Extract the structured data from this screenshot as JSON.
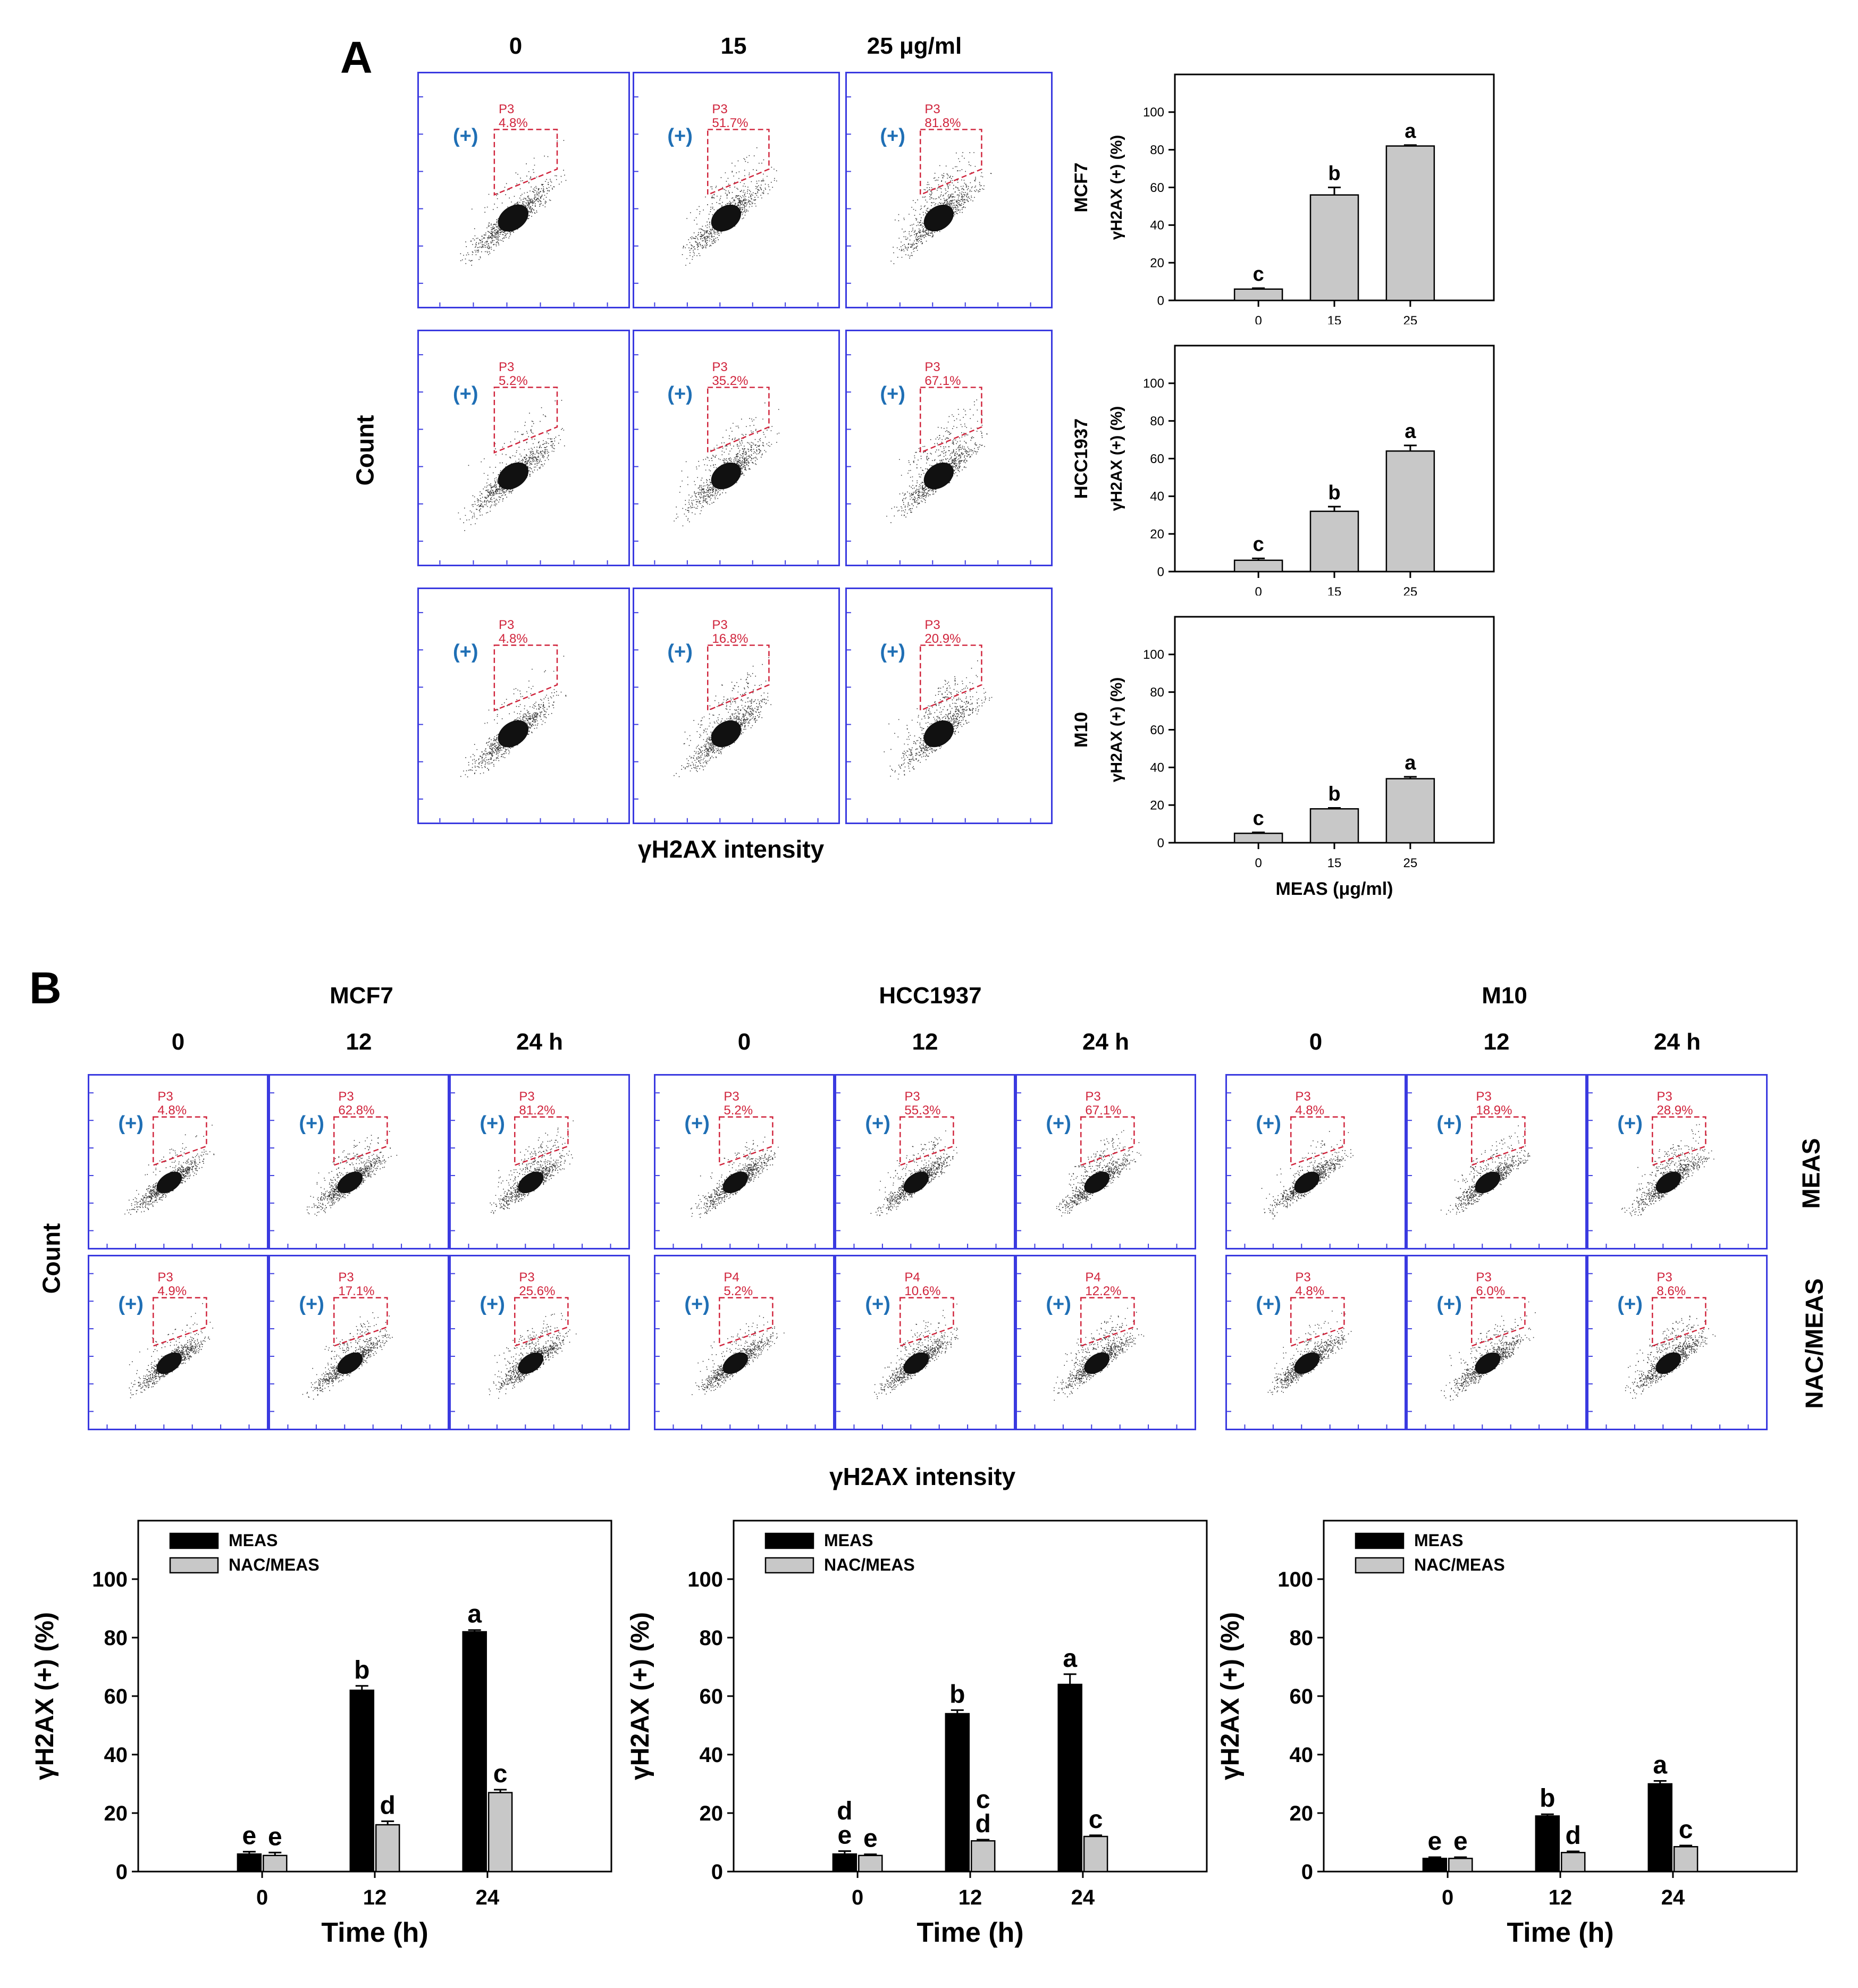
{
  "panelA": {
    "letter": "A",
    "dose_headers": [
      "0",
      "15",
      "25 μg/ml"
    ],
    "ylabel": "Count",
    "xlabel": "γH2AX intensity",
    "plus_label": "(+)",
    "flow_rows": [
      {
        "cell": "MCF7",
        "gates": [
          {
            "name": "P3",
            "pct": "4.8%"
          },
          {
            "name": "P3",
            "pct": "51.7%"
          },
          {
            "name": "P3",
            "pct": "81.8%"
          }
        ]
      },
      {
        "cell": "HCC1937",
        "gates": [
          {
            "name": "P3",
            "pct": "5.2%"
          },
          {
            "name": "P3",
            "pct": "35.2%"
          },
          {
            "name": "P3",
            "pct": "67.1%"
          }
        ]
      },
      {
        "cell": "M10",
        "gates": [
          {
            "name": "P3",
            "pct": "4.8%"
          },
          {
            "name": "P3",
            "pct": "16.8%"
          },
          {
            "name": "P3",
            "pct": "20.9%"
          }
        ]
      }
    ]
  },
  "panelB": {
    "letter": "B",
    "groups": [
      "MCF7",
      "HCC1937",
      "M10"
    ],
    "time_headers": [
      "0",
      "12",
      "24 h"
    ],
    "ylabel": "Count",
    "xlabel": "γH2AX intensity",
    "row_labels": [
      "MEAS",
      "NAC/MEAS"
    ],
    "plus_label": "(+)",
    "gates": {
      "MCF7": {
        "MEAS": [
          {
            "name": "P3",
            "pct": "4.8%"
          },
          {
            "name": "P3",
            "pct": "62.8%"
          },
          {
            "name": "P3",
            "pct": "81.2%"
          }
        ],
        "NAC/MEAS": [
          {
            "name": "P3",
            "pct": "4.9%"
          },
          {
            "name": "P3",
            "pct": "17.1%"
          },
          {
            "name": "P3",
            "pct": "25.6%"
          }
        ]
      },
      "HCC1937": {
        "MEAS": [
          {
            "name": "P3",
            "pct": "5.2%"
          },
          {
            "name": "P3",
            "pct": "55.3%"
          },
          {
            "name": "P3",
            "pct": "67.1%"
          }
        ],
        "NAC/MEAS": [
          {
            "name": "P4",
            "pct": "5.2%"
          },
          {
            "name": "P4",
            "pct": "10.6%"
          },
          {
            "name": "P4",
            "pct": "12.2%"
          }
        ]
      },
      "M10": {
        "MEAS": [
          {
            "name": "P3",
            "pct": "4.8%"
          },
          {
            "name": "P3",
            "pct": "18.9%"
          },
          {
            "name": "P3",
            "pct": "28.9%"
          }
        ],
        "NAC/MEAS": [
          {
            "name": "P3",
            "pct": "4.8%"
          },
          {
            "name": "P3",
            "pct": "6.0%"
          },
          {
            "name": "P3",
            "pct": "8.6%"
          }
        ]
      }
    }
  },
  "chart_data": [
    {
      "type": "bar",
      "title": "MCF7",
      "categories": [
        "0",
        "15",
        "25"
      ],
      "values": [
        6,
        56,
        82
      ],
      "errors": [
        0.5,
        4,
        0.5
      ],
      "letters": [
        "c",
        "b",
        "a"
      ],
      "xlabel": "",
      "ylabel": "γH2AX (+) (%)",
      "ylim": [
        0,
        120
      ],
      "yticks": [
        0,
        20,
        40,
        60,
        80,
        100
      ]
    },
    {
      "type": "bar",
      "title": "HCC1937",
      "categories": [
        "0",
        "15",
        "25"
      ],
      "values": [
        6,
        32,
        64
      ],
      "errors": [
        1,
        2.5,
        3
      ],
      "letters": [
        "c",
        "b",
        "a"
      ],
      "xlabel": "",
      "ylabel": "γH2AX (+) (%)",
      "ylim": [
        0,
        120
      ],
      "yticks": [
        0,
        20,
        40,
        60,
        80,
        100
      ]
    },
    {
      "type": "bar",
      "title": "M10",
      "categories": [
        "0",
        "15",
        "25"
      ],
      "values": [
        5,
        18,
        34
      ],
      "errors": [
        0.5,
        0.5,
        1
      ],
      "letters": [
        "c",
        "b",
        "a"
      ],
      "xlabel": "MEAS (μg/ml)",
      "ylabel": "γH2AX (+) (%)",
      "ylim": [
        0,
        120
      ],
      "yticks": [
        0,
        20,
        40,
        60,
        80,
        100
      ]
    },
    {
      "type": "bar",
      "title": "MCF7",
      "categories": [
        "0",
        "12",
        "24"
      ],
      "legend": [
        "MEAS",
        "NAC/MEAS"
      ],
      "series": [
        {
          "name": "MEAS",
          "values": [
            6,
            62,
            82
          ],
          "errors": [
            0.8,
            1.5,
            0.6
          ],
          "letters": [
            "e",
            "b",
            "a"
          ]
        },
        {
          "name": "NAC/MEAS",
          "values": [
            5.5,
            16,
            27
          ],
          "errors": [
            1,
            1.2,
            1
          ],
          "letters": [
            "e",
            "d",
            "c"
          ]
        }
      ],
      "xlabel": "Time (h)",
      "ylabel": "γH2AX (+) (%)",
      "ylim": [
        0,
        120
      ],
      "yticks": [
        0,
        20,
        40,
        60,
        80,
        100
      ]
    },
    {
      "type": "bar",
      "title": "HCC1937",
      "categories": [
        "0",
        "12",
        "24"
      ],
      "legend": [
        "MEAS",
        "NAC/MEAS"
      ],
      "series": [
        {
          "name": "MEAS",
          "values": [
            6,
            54,
            64
          ],
          "errors": [
            1,
            1.2,
            3.5
          ],
          "letters": [
            "d\ne",
            "b",
            "a"
          ]
        },
        {
          "name": "NAC/MEAS",
          "values": [
            5.5,
            10.5,
            12
          ],
          "errors": [
            0.4,
            0.4,
            0.4
          ],
          "letters": [
            "e",
            "c\nd",
            "c"
          ]
        }
      ],
      "xlabel": "Time (h)",
      "ylabel": "γH2AX (+) (%)",
      "ylim": [
        0,
        120
      ],
      "yticks": [
        0,
        20,
        40,
        60,
        80,
        100
      ]
    },
    {
      "type": "bar",
      "title": "M10",
      "categories": [
        "0",
        "12",
        "24"
      ],
      "legend": [
        "MEAS",
        "NAC/MEAS"
      ],
      "series": [
        {
          "name": "MEAS",
          "values": [
            4.5,
            19,
            30
          ],
          "errors": [
            0.4,
            0.6,
            1
          ],
          "letters": [
            "e",
            "b",
            "a"
          ]
        },
        {
          "name": "NAC/MEAS",
          "values": [
            4.5,
            6.5,
            8.5
          ],
          "errors": [
            0.4,
            0.4,
            0.4
          ],
          "letters": [
            "e",
            "d",
            "c"
          ]
        }
      ],
      "xlabel": "Time (h)",
      "ylabel": "γH2AX (+) (%)",
      "ylim": [
        0,
        120
      ],
      "yticks": [
        0,
        20,
        40,
        60,
        80,
        100
      ]
    }
  ]
}
